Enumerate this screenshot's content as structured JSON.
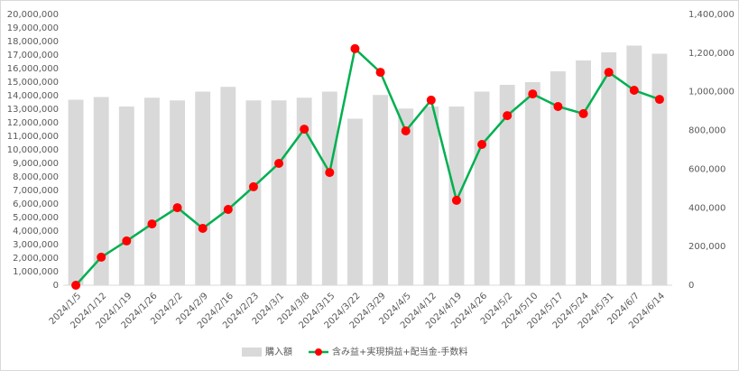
{
  "chart_data": {
    "type": "bar-line",
    "categories": [
      "2024/1/5",
      "2024/1/12",
      "2024/1/19",
      "2024/1/26",
      "2024/2/2",
      "2024/2/9",
      "2024/2/16",
      "2024/2/23",
      "2024/3/1",
      "2024/3/8",
      "2024/3/15",
      "2024/3/22",
      "2024/3/29",
      "2024/4/5",
      "2024/4/12",
      "2024/4/19",
      "2024/4/26",
      "2024/5/2",
      "2024/5/10",
      "2024/5/17",
      "2024/5/24",
      "2024/5/31",
      "2024/6/7",
      "2024/6/14"
    ],
    "series": [
      {
        "name": "購入額",
        "type": "bar",
        "color": "#d9d9d9",
        "axis": "y",
        "values": [
          13700000,
          13900000,
          13200000,
          13850000,
          13650000,
          14300000,
          14650000,
          13650000,
          13650000,
          13850000,
          14300000,
          12300000,
          14050000,
          13050000,
          13200000,
          13200000,
          14300000,
          14800000,
          15000000,
          15800000,
          16600000,
          17200000,
          17700000,
          17100000
        ]
      },
      {
        "name": "含み益+実現損益+配当金-手数料",
        "type": "line",
        "color": "#00b050",
        "marker_color": "#ff0000",
        "axis": "y2",
        "values": [
          0,
          145000,
          229000,
          317000,
          401000,
          294000,
          392000,
          509000,
          630000,
          807000,
          583000,
          1223000,
          1101000,
          798000,
          957000,
          439000,
          728000,
          877000,
          989000,
          924000,
          887000,
          1101000,
          1008000,
          961000
        ]
      }
    ],
    "ylim": [
      0,
      20000000
    ],
    "yticks": [
      0,
      {
        "value": 1000000,
        "label": "1,000,000"
      },
      {
        "value": 2000000,
        "label": "2,000,000"
      },
      {
        "value": 3000000,
        "label": "3,000,000"
      },
      {
        "value": 4000000,
        "label": "4,000,000"
      },
      {
        "value": 5000000,
        "label": "5,000,000"
      },
      {
        "value": 6000000,
        "label": "6,000,000"
      },
      {
        "value": 7000000,
        "label": "7,000,000"
      },
      {
        "value": 8000000,
        "label": "8,000,000"
      },
      {
        "value": 9000000,
        "label": "9,000,000"
      },
      {
        "value": 10000000,
        "label": "10,000,000"
      },
      {
        "value": 11000000,
        "label": "11,000,000"
      },
      {
        "value": 12000000,
        "label": "12,000,000"
      },
      {
        "value": 13000000,
        "label": "13,000,000"
      },
      {
        "value": 14000000,
        "label": "14,000,000"
      },
      {
        "value": 15000000,
        "label": "15,000,000"
      },
      {
        "value": 16000000,
        "label": "16,000,000"
      },
      {
        "value": 17000000,
        "label": "17,000,000"
      },
      {
        "value": 18000000,
        "label": "18,000,000"
      },
      {
        "value": 19000000,
        "label": "19,000,000"
      },
      {
        "value": 20000000,
        "label": "20,000,000"
      }
    ],
    "y2lim": [
      0,
      1400000
    ],
    "y2ticks": [
      0,
      {
        "value": 200000,
        "label": "200,000"
      },
      {
        "value": 400000,
        "label": "400,000"
      },
      {
        "value": 600000,
        "label": "600,000"
      },
      {
        "value": 800000,
        "label": "800,000"
      },
      {
        "value": 1000000,
        "label": "1,000,000"
      },
      {
        "value": 1200000,
        "label": "1,200,000"
      },
      {
        "value": 1400000,
        "label": "1,400,000"
      }
    ],
    "legend": "bottom"
  }
}
